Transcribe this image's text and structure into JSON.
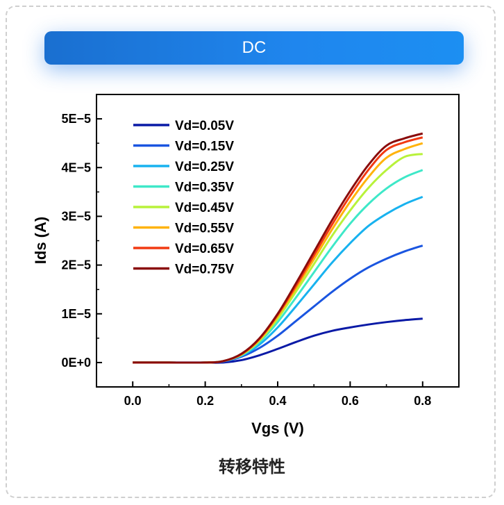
{
  "banner": {
    "title": "DC"
  },
  "caption": "转移特性",
  "chart_data": {
    "type": "line",
    "xlabel": "Vgs (V)",
    "ylabel": "Ids (A)",
    "xlim": [
      -0.1,
      0.9
    ],
    "ylim": [
      -5e-06,
      5.5e-05
    ],
    "xticks": [
      0.0,
      0.2,
      0.4,
      0.6,
      0.8
    ],
    "xtick_labels": [
      "0.0",
      "0.2",
      "0.4",
      "0.6",
      "0.8"
    ],
    "yticks": [
      0,
      1e-05,
      2e-05,
      3e-05,
      4e-05,
      5e-05
    ],
    "ytick_labels": [
      "0E+0",
      "1E−5",
      "2E−5",
      "3E−5",
      "4E−5",
      "5E−5"
    ],
    "legend_position": "top-left",
    "x": [
      0.0,
      0.1,
      0.2,
      0.25,
      0.3,
      0.35,
      0.4,
      0.45,
      0.5,
      0.55,
      0.6,
      0.65,
      0.7,
      0.75,
      0.8
    ],
    "series": [
      {
        "name": "Vd=0.05V",
        "color": "#0a1aa6",
        "values": [
          0,
          0,
          0,
          0.0,
          5e-07,
          1.5e-06,
          2.8e-06,
          4.2e-06,
          5.5e-06,
          6.5e-06,
          7.2e-06,
          7.8e-06,
          8.3e-06,
          8.7e-06,
          9e-06
        ]
      },
      {
        "name": "Vd=0.15V",
        "color": "#1a55e0",
        "values": [
          0,
          0,
          0,
          2e-07,
          1.2e-06,
          3e-06,
          5.5e-06,
          8.5e-06,
          1.15e-05,
          1.45e-05,
          1.72e-05,
          1.95e-05,
          2.13e-05,
          2.28e-05,
          2.4e-05
        ]
      },
      {
        "name": "Vd=0.25V",
        "color": "#18b2ef",
        "values": [
          0,
          0,
          0,
          3e-07,
          1.4e-06,
          3.7e-06,
          7.2e-06,
          1.15e-05,
          1.6e-05,
          2.05e-05,
          2.45e-05,
          2.8e-05,
          3.05e-05,
          3.25e-05,
          3.4e-05
        ]
      },
      {
        "name": "Vd=0.35V",
        "color": "#3ee8c8",
        "values": [
          0,
          0,
          0,
          3e-07,
          1.5e-06,
          4.2e-06,
          8.3e-06,
          1.33e-05,
          1.85e-05,
          2.37e-05,
          2.85e-05,
          3.25e-05,
          3.57e-05,
          3.8e-05,
          3.95e-05
        ]
      },
      {
        "name": "Vd=0.45V",
        "color": "#b8f23a",
        "values": [
          0,
          0,
          0,
          3e-07,
          1.6e-06,
          4.5e-06,
          9e-06,
          1.45e-05,
          2.02e-05,
          2.6e-05,
          3.12e-05,
          3.58e-05,
          3.95e-05,
          4.22e-05,
          4.28e-05
        ]
      },
      {
        "name": "Vd=0.55V",
        "color": "#ffb30c",
        "values": [
          0,
          0,
          0,
          3e-07,
          1.7e-06,
          4.7e-06,
          9.5e-06,
          1.52e-05,
          2.12e-05,
          2.73e-05,
          3.3e-05,
          3.8e-05,
          4.2e-05,
          4.38e-05,
          4.5e-05
        ]
      },
      {
        "name": "Vd=0.65V",
        "color": "#f23a12",
        "values": [
          0,
          0,
          0,
          3e-07,
          1.7e-06,
          4.9e-06,
          9.8e-06,
          1.57e-05,
          2.2e-05,
          2.83e-05,
          3.42e-05,
          3.95e-05,
          4.36e-05,
          4.52e-05,
          4.62e-05
        ]
      },
      {
        "name": "Vd=0.75V",
        "color": "#8a0c0c",
        "values": [
          0,
          0,
          0,
          3e-07,
          1.8e-06,
          5e-06,
          1e-05,
          1.62e-05,
          2.27e-05,
          2.92e-05,
          3.52e-05,
          4.05e-05,
          4.45e-05,
          4.6e-05,
          4.7e-05
        ]
      }
    ]
  }
}
